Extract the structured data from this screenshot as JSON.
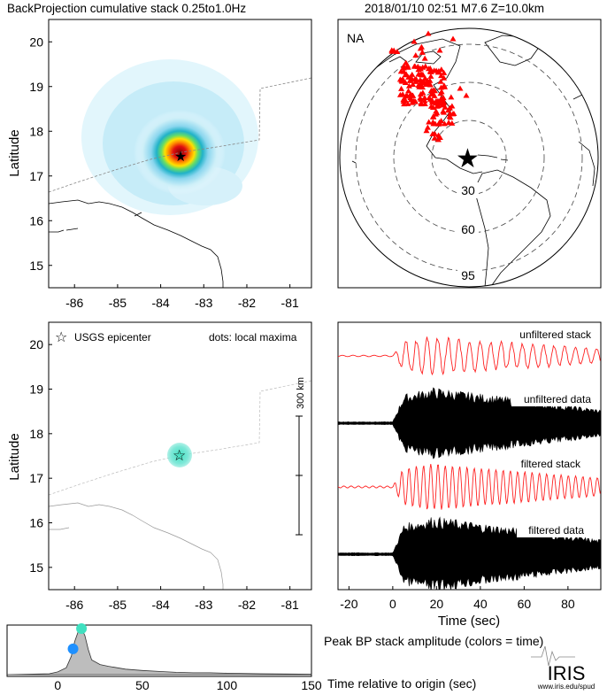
{
  "header": {
    "left_title": "BackProjection cumulative stack 0.25to1.0Hz",
    "right_title": "2018/01/10 02:51   M7.6  Z=10.0km"
  },
  "colors": {
    "frame": "#000000",
    "stack_red": "#ff2020",
    "data_black": "#000000",
    "station_red": "#ff0000",
    "epicenter_blue": "#2a2aff",
    "hot_core": "#c8102e",
    "cyan_glow": "#7fe8d8",
    "dot_blue": "#1e90ff",
    "dot_teal": "#40e0c0",
    "hist_fill": "#bdbdbd"
  },
  "icons": {
    "star": "star-icon",
    "iris_logo": "iris-logo-icon"
  },
  "chart_data": [
    {
      "id": "bp-map",
      "type": "heatmap",
      "ylabel": "Latitude",
      "xticks": [
        "-86",
        "-85",
        "-84",
        "-83",
        "-82",
        "-81"
      ],
      "yticks": [
        "20",
        "19",
        "18",
        "17",
        "16",
        "15"
      ],
      "xlim": [
        -86.6,
        -80.5
      ],
      "ylim": [
        14.5,
        20.5
      ],
      "peak": {
        "lon": -83.5,
        "lat": 17.5
      }
    },
    {
      "id": "global-map",
      "type": "scatter",
      "region_label": "NA",
      "rings": [
        "30",
        "60",
        "95"
      ],
      "epicenter": {
        "lon": -83.5,
        "lat": 17.5
      }
    },
    {
      "id": "local-maxima-map",
      "type": "scatter",
      "ylabel": "Latitude",
      "legend_epicenter": "USGS epicenter",
      "legend_dots": "dots: local maxima",
      "scale_label": "300 km",
      "xticks": [
        "-86",
        "-85",
        "-84",
        "-83",
        "-82",
        "-81"
      ],
      "yticks": [
        "20",
        "19",
        "18",
        "17",
        "16",
        "15"
      ],
      "xlim": [
        -86.6,
        -80.5
      ],
      "ylim": [
        14.5,
        20.5
      ],
      "epicenter": {
        "lon": -83.5,
        "lat": 17.5
      }
    },
    {
      "id": "traces",
      "type": "line",
      "xlabel": "Time (sec)",
      "xticks": [
        "-20",
        "0",
        "20",
        "40",
        "60",
        "80"
      ],
      "xlim": [
        -25,
        95
      ],
      "series": [
        {
          "name": "unfiltered stack"
        },
        {
          "name": "unfiltered data"
        },
        {
          "name": "filtered stack"
        },
        {
          "name": "filtered data"
        }
      ]
    },
    {
      "id": "peak-amplitude",
      "type": "area",
      "caption": "Peak BP stack amplitude (colors = time)",
      "xlabel": "Time relative to origin (sec)",
      "xticks": [
        "0",
        "50",
        "100",
        "150"
      ],
      "xlim": [
        -30,
        150
      ],
      "x": [
        -30,
        -5,
        0,
        5,
        8,
        10,
        12,
        14,
        16,
        18,
        20,
        25,
        30,
        40,
        50,
        60,
        70,
        80,
        90,
        100,
        120,
        150
      ],
      "y": [
        0,
        0.02,
        0.06,
        0.15,
        0.4,
        0.72,
        0.93,
        1.0,
        0.85,
        0.55,
        0.32,
        0.22,
        0.18,
        0.12,
        0.09,
        0.07,
        0.05,
        0.04,
        0.04,
        0.03,
        0.02,
        0.01
      ],
      "maxima": [
        {
          "x": 9,
          "color": "#1e90ff"
        },
        {
          "x": 14,
          "color": "#40e0c0"
        }
      ]
    }
  ],
  "footer": {
    "logo_text": "IRIS",
    "logo_url_text": "www.iris.edu/spud"
  }
}
